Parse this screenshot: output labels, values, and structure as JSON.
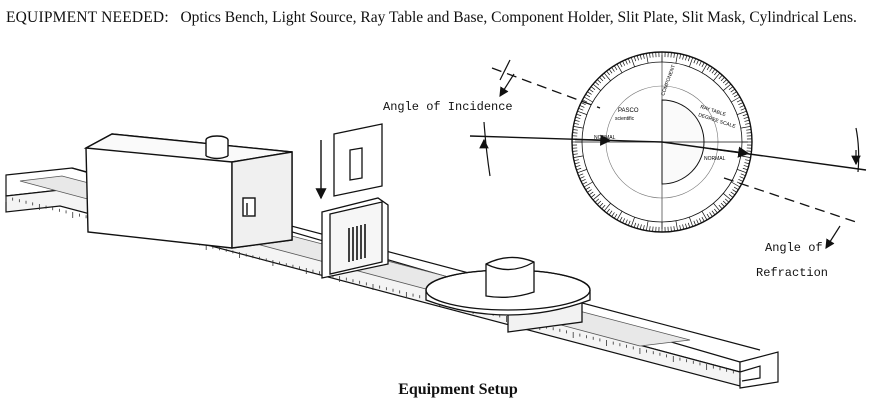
{
  "equipment": {
    "lead": "EQUIPMENT NEEDED:",
    "items": "Optics Bench, Light Source, Ray Table and Base, Component Holder, Slit Plate, Slit Mask, Cylindrical Lens."
  },
  "labels": {
    "incidence": "Angle of Incidence",
    "refraction_1": "Angle of",
    "refraction_2": "Refraction"
  },
  "ray_table": {
    "brand": "PASCO",
    "model": "scientific",
    "center_text_1": "RAY TABLE",
    "center_text_2": "DEGREE SCALE",
    "normal_label": "NORMAL",
    "component_label": "COMPONENT"
  },
  "caption": "Equipment Setup"
}
